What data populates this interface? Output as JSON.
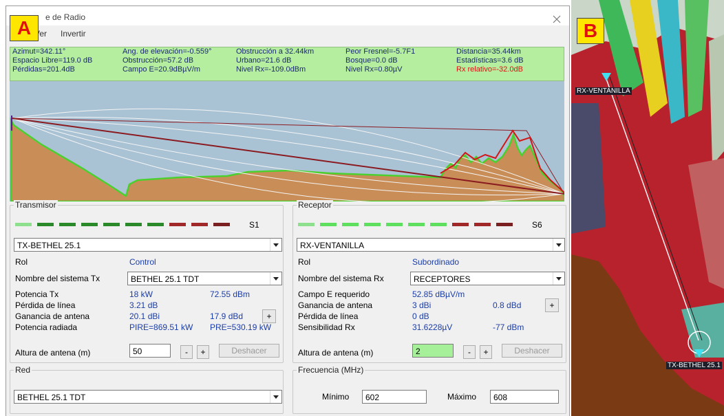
{
  "labels": {
    "a": "A",
    "b": "B"
  },
  "window": {
    "title": "e de Radio",
    "menu": [
      "Ver",
      "Invertir"
    ]
  },
  "info": {
    "rows": [
      [
        "Azimut=342.11°",
        "Ang. de elevación=-0.559°",
        "Obstrucción a 32.44km",
        "Peor Fresnel=-5.7F1",
        "Distancia=35.44km"
      ],
      [
        "Espacio Libre=119.0 dB",
        "Obstrucción=57.2 dB",
        "Urbano=21.6 dB",
        "Bosque=0.0 dB",
        "Estadísticas=3.6 dB"
      ],
      [
        "Pérdidas=201.4dB",
        "Campo E=20.9dBµV/m",
        "Nivel Rx=-109.0dBm",
        "Nivel Rx=0.80µV",
        "Rx relativo=-32.0dB"
      ]
    ]
  },
  "transmitter": {
    "title": "Transmisor",
    "signal": "S1",
    "unit": "TX-BETHEL 25.1",
    "rol_label": "Rol",
    "rol": "Control",
    "system_label": "Nombre del sistema Tx",
    "system": "BETHEL 25.1 TDT",
    "rows": [
      [
        "Potencia Tx",
        "18 kW",
        "72.55 dBm"
      ],
      [
        "Pérdida de línea",
        "3.21 dB"
      ],
      [
        "Ganancia de antena",
        "20.1 dBi",
        "17.9 dBd"
      ],
      [
        "Potencia radiada",
        "PIRE=869.51 kW",
        "PRE=530.19 kW"
      ]
    ],
    "height_label": "Altura de antena (m)",
    "height": "50",
    "minus": "-",
    "plus": "+",
    "gain_plus": "+",
    "undo": "Deshacer"
  },
  "receiver": {
    "title": "Receptor",
    "signal": "S6",
    "unit": "RX-VENTANILLA",
    "rol_label": "Rol",
    "rol": "Subordinado",
    "system_label": "Nombre del sistema Rx",
    "system": "RECEPTORES",
    "rows": [
      [
        "Campo E requerido",
        "52.85 dBµV/m"
      ],
      [
        "Ganancia de antena",
        "3 dBi",
        "0.8 dBd"
      ],
      [
        "Pérdida de línea",
        "0 dB"
      ],
      [
        "Sensibilidad Rx",
        "31.6228µV",
        "-77 dBm"
      ]
    ],
    "height_label": "Altura de antena (m)",
    "height": "2",
    "minus": "-",
    "plus": "+",
    "gain_plus": "+",
    "undo": "Deshacer"
  },
  "network": {
    "title": "Red",
    "value": "BETHEL 25.1 TDT"
  },
  "frequency": {
    "title": "Frecuencia (MHz)",
    "min_label": "Mínimo",
    "min": "602",
    "max_label": "Máximo",
    "max": "608"
  },
  "map": {
    "rx_label": "RX-VENTANILLA",
    "tx_label": "TX-BETHEL 25.1"
  }
}
